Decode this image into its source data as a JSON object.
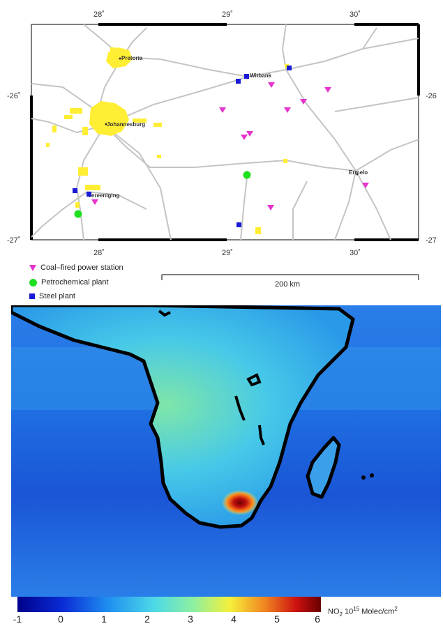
{
  "top_map": {
    "lon_ticks": [
      "28˚",
      "29˚",
      "30˚"
    ],
    "lat_ticks_left": [
      "-26˚",
      "-27˚"
    ],
    "lat_ticks_right": [
      "-26",
      "-27"
    ],
    "cities": [
      "Pretoria",
      "Witbank",
      "Johannesburg",
      "Ermelo",
      "Vereeniging"
    ],
    "colors": {
      "road": "#c4c4c4",
      "urban": "#ffee33",
      "power": "#e633cc",
      "petro": "#1fe01f",
      "steel": "#1a1ad6"
    }
  },
  "legend": {
    "items": [
      {
        "label": "Coal–fired power station",
        "symbol": "magenta-triangle"
      },
      {
        "label": "Petrochemical plant",
        "symbol": "green-circle"
      },
      {
        "label": "Steel plant",
        "symbol": "blue-square"
      }
    ],
    "scale_label": "200 km"
  },
  "colorbar": {
    "ticks": [
      "-1",
      "0",
      "1",
      "2",
      "3",
      "4",
      "5",
      "6"
    ],
    "unit_main": "NO",
    "unit_sub": "2",
    "unit_mid": " 10",
    "unit_sup": "15",
    "unit_tail": " Molec/cm",
    "unit_sup2": "2",
    "range": [
      -1,
      6
    ]
  }
}
